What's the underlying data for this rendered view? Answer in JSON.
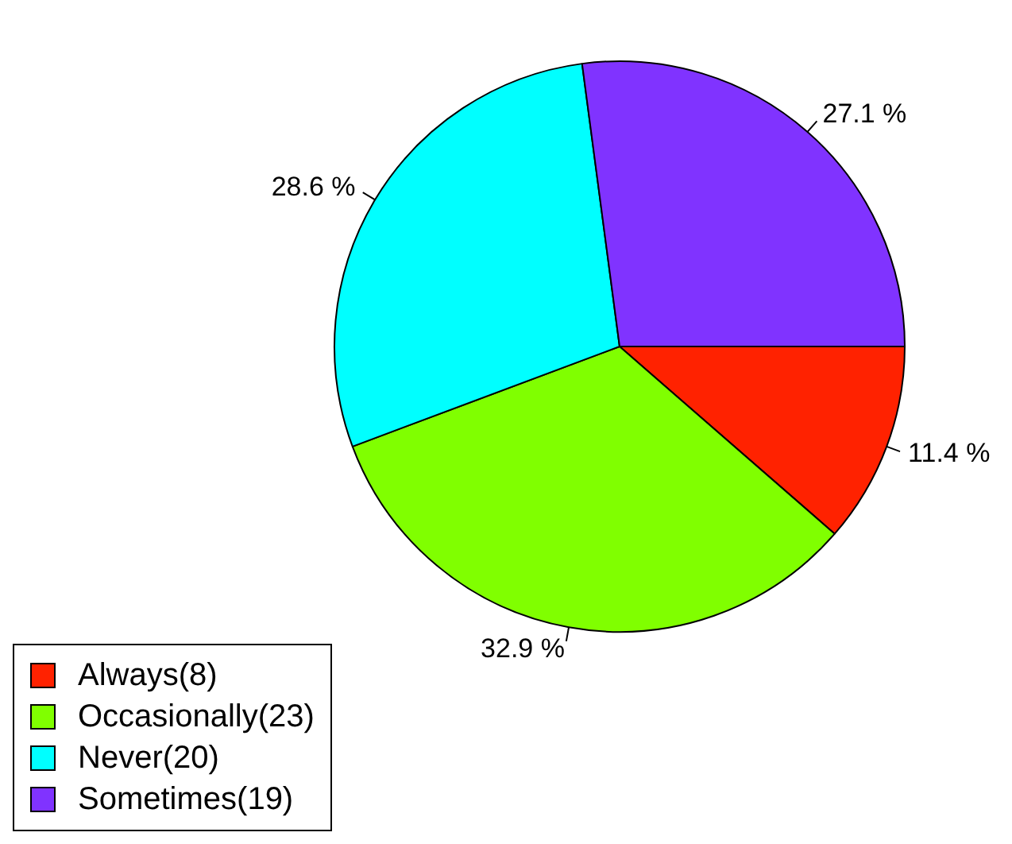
{
  "chart_data": {
    "type": "pie",
    "categories": [
      "Always(8)",
      "Occasionally(23)",
      "Never(20)",
      "Sometimes(19)"
    ],
    "values": [
      11.4,
      32.9,
      28.6,
      27.1
    ],
    "colors": [
      "#ff2200",
      "#80ff00",
      "#00ffff",
      "#8033ff"
    ],
    "value_labels": [
      "11.4 %",
      "32.9 %",
      "28.6 %",
      "27.1 %"
    ],
    "legend": "bottom left"
  }
}
